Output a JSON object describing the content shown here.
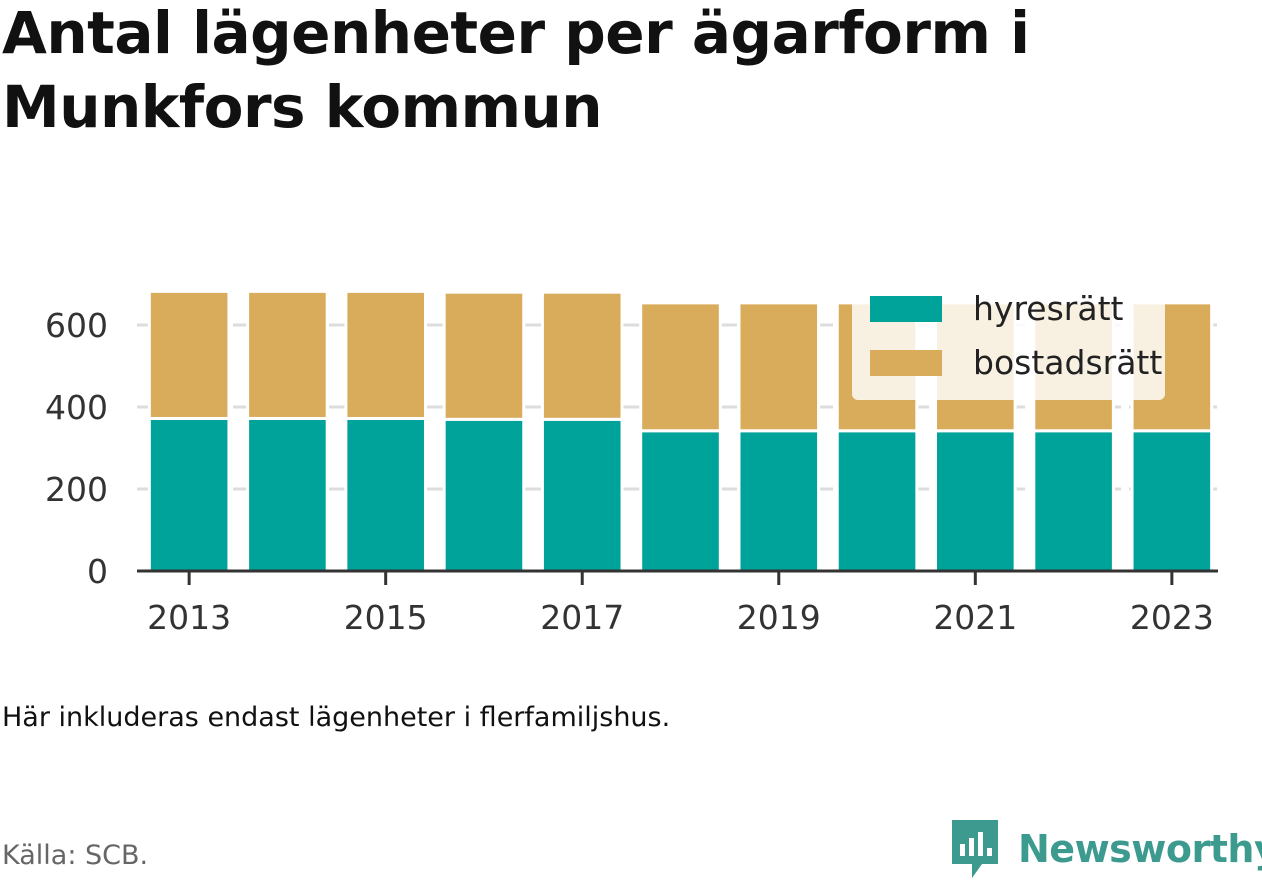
{
  "title": "Antal lägenheter per ägarform i Munkfors kommun",
  "note": "Här inkluderas endast lägenheter i flerfamiljshus.",
  "source": "Källa: SCB.",
  "brand": "Newsworthy",
  "colors": {
    "hyresratt": "#00a39a",
    "bostadsratt": "#d9ac5b",
    "brand": "#3d9a8f"
  },
  "chart_data": {
    "type": "bar",
    "stacked": true,
    "categories": [
      "2013",
      "2014",
      "2015",
      "2016",
      "2017",
      "2018",
      "2019",
      "2020",
      "2021",
      "2022",
      "2023"
    ],
    "x_tick_labels": [
      "2013",
      "2015",
      "2017",
      "2019",
      "2021",
      "2023"
    ],
    "series": [
      {
        "name": "hyresrätt",
        "color": "#00a39a",
        "values": [
          372,
          372,
          372,
          370,
          370,
          342,
          342,
          342,
          342,
          342,
          342
        ]
      },
      {
        "name": "bostadsrätt",
        "color": "#d9ac5b",
        "values": [
          310,
          310,
          310,
          310,
          310,
          312,
          312,
          312,
          312,
          312,
          312
        ]
      }
    ],
    "ylim": [
      0,
      690
    ],
    "y_ticks": [
      0,
      200,
      400,
      600
    ],
    "grid": true,
    "legend": "top-right"
  }
}
